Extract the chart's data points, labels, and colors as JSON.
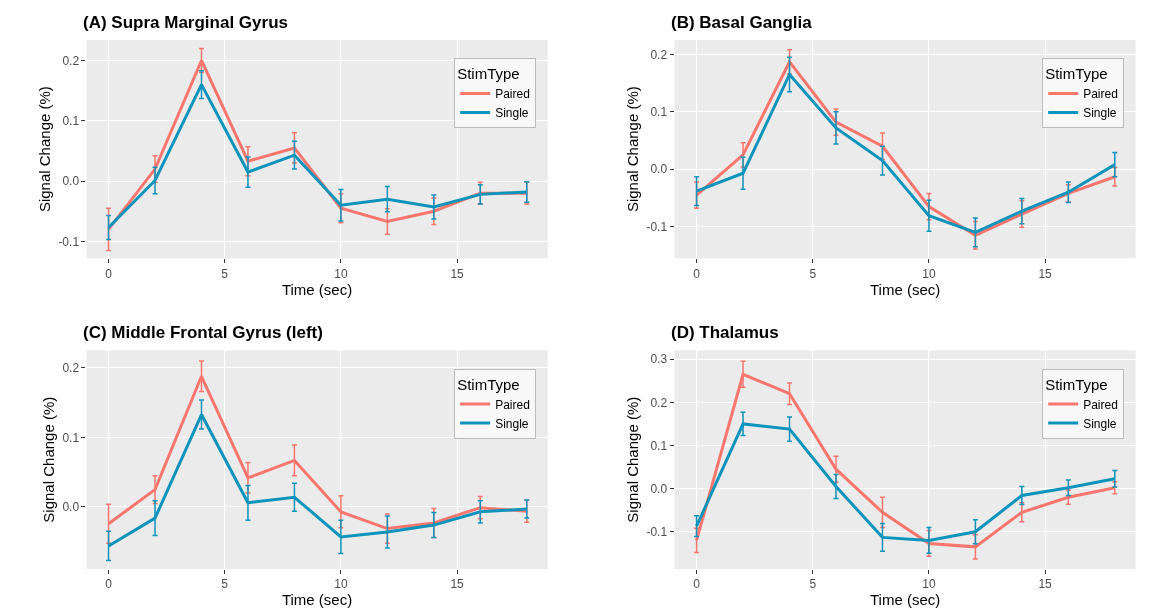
{
  "chart_data": [
    {
      "type": "line",
      "title": "(A) Supra Marginal Gyrus",
      "xlabel": "Time (sec)",
      "ylabel": "Signal Change (%)",
      "legend_title": "StimType",
      "legend": "top right",
      "grid": true,
      "marker": "none",
      "line_style": "solid",
      "x": [
        0,
        2,
        4,
        6,
        8,
        10,
        12,
        14,
        16,
        18
      ],
      "xlim": [
        -0.95,
        18.9
      ],
      "xticks": [
        0,
        5,
        10,
        15
      ],
      "ylim": [
        -0.128,
        0.234
      ],
      "yticks": [
        {
          "value": -0.1,
          "label": "-0.1"
        },
        {
          "value": 0,
          "label": "0.0"
        },
        {
          "value": 0.1,
          "label": "0.1"
        },
        {
          "value": 0.2,
          "label": "0.2"
        }
      ],
      "series": [
        {
          "name": "Paired",
          "color": "#f8766d",
          "values": [
            -0.08,
            0.02,
            0.2,
            0.033,
            0.055,
            -0.045,
            -0.067,
            -0.05,
            -0.02,
            -0.02
          ],
          "errors": [
            0.035,
            0.022,
            0.02,
            0.024,
            0.025,
            0.024,
            0.021,
            0.022,
            0.018,
            0.018
          ]
        },
        {
          "name": "Single",
          "color": "#0e93bb",
          "values": [
            -0.077,
            0.001,
            0.16,
            0.015,
            0.043,
            -0.04,
            -0.03,
            -0.043,
            -0.022,
            -0.018
          ],
          "errors": [
            0.02,
            0.022,
            0.023,
            0.025,
            0.023,
            0.026,
            0.021,
            0.02,
            0.016,
            0.017
          ]
        }
      ]
    },
    {
      "type": "line",
      "title": "(B) Basal Ganglia",
      "xlabel": "Time (sec)",
      "ylabel": "Signal Change (%)",
      "legend_title": "StimType",
      "legend": "top right",
      "grid": true,
      "marker": "none",
      "line_style": "solid",
      "x": [
        0,
        2,
        4,
        6,
        8,
        10,
        12,
        14,
        16,
        18
      ],
      "xlim": [
        -0.95,
        18.9
      ],
      "xticks": [
        0,
        5,
        10,
        15
      ],
      "ylim": [
        -0.155,
        0.225
      ],
      "yticks": [
        {
          "value": -0.1,
          "label": "-0.1"
        },
        {
          "value": 0,
          "label": "0.0"
        },
        {
          "value": 0.1,
          "label": "0.1"
        },
        {
          "value": 0.2,
          "label": "0.2"
        }
      ],
      "series": [
        {
          "name": "Paired",
          "color": "#f8766d",
          "values": [
            -0.045,
            0.025,
            0.187,
            0.082,
            0.04,
            -0.065,
            -0.115,
            -0.078,
            -0.042,
            -0.013
          ],
          "errors": [
            0.023,
            0.021,
            0.021,
            0.023,
            0.023,
            0.023,
            0.024,
            0.023,
            0.015,
            0.016
          ]
        },
        {
          "name": "Single",
          "color": "#0e93bb",
          "values": [
            -0.038,
            -0.007,
            0.165,
            0.072,
            0.015,
            -0.081,
            -0.11,
            -0.073,
            -0.04,
            0.008
          ],
          "errors": [
            0.025,
            0.028,
            0.03,
            0.028,
            0.025,
            0.027,
            0.025,
            0.022,
            0.018,
            0.021
          ]
        }
      ]
    },
    {
      "type": "line",
      "title": "(C) Middle Frontal Gyrus (left)",
      "xlabel": "Time (sec)",
      "ylabel": "Signal Change (%)",
      "legend_title": "StimType",
      "legend": "top right",
      "grid": true,
      "marker": "none",
      "line_style": "solid",
      "x": [
        0,
        2,
        4,
        6,
        8,
        10,
        12,
        14,
        16,
        18
      ],
      "xlim": [
        -0.95,
        18.9
      ],
      "xticks": [
        0,
        5,
        10,
        15
      ],
      "ylim": [
        -0.089,
        0.225
      ],
      "yticks": [
        {
          "value": 0,
          "label": "0.0"
        },
        {
          "value": 0.1,
          "label": "0.1"
        },
        {
          "value": 0.2,
          "label": "0.2"
        }
      ],
      "series": [
        {
          "name": "Paired",
          "color": "#f8766d",
          "values": [
            -0.024,
            0.025,
            0.188,
            0.042,
            0.067,
            -0.007,
            -0.031,
            -0.023,
            -0.001,
            -0.006
          ],
          "errors": [
            0.028,
            0.02,
            0.022,
            0.022,
            0.022,
            0.023,
            0.021,
            0.021,
            0.016,
            0.016
          ]
        },
        {
          "name": "Single",
          "color": "#0e93bb",
          "values": [
            -0.056,
            -0.016,
            0.133,
            0.006,
            0.014,
            -0.043,
            -0.036,
            -0.026,
            -0.007,
            -0.003
          ],
          "errors": [
            0.021,
            0.025,
            0.021,
            0.025,
            0.02,
            0.024,
            0.023,
            0.018,
            0.016,
            0.013
          ]
        }
      ]
    },
    {
      "type": "line",
      "title": "(D) Thalamus",
      "xlabel": "Time (sec)",
      "ylabel": "Signal Change (%)",
      "legend_title": "StimType",
      "legend": "top right",
      "grid": true,
      "marker": "none",
      "line_style": "solid",
      "x": [
        0,
        2,
        4,
        6,
        8,
        10,
        12,
        14,
        16,
        18
      ],
      "xlim": [
        -0.95,
        18.9
      ],
      "xticks": [
        0,
        5,
        10,
        15
      ],
      "ylim": [
        -0.186,
        0.32
      ],
      "yticks": [
        {
          "value": -0.1,
          "label": "-0.1"
        },
        {
          "value": 0,
          "label": "0.0"
        },
        {
          "value": 0.1,
          "label": "0.1"
        },
        {
          "value": 0.2,
          "label": "0.2"
        },
        {
          "value": 0.3,
          "label": "0.3"
        }
      ],
      "series": [
        {
          "name": "Paired",
          "color": "#f8766d",
          "values": [
            -0.12,
            0.265,
            0.22,
            0.045,
            -0.055,
            -0.127,
            -0.135,
            -0.055,
            -0.02,
            0.002
          ],
          "errors": [
            0.028,
            0.03,
            0.025,
            0.03,
            0.035,
            0.03,
            0.028,
            0.022,
            0.016,
            0.014
          ]
        },
        {
          "name": "Single",
          "color": "#0e93bb",
          "values": [
            -0.087,
            0.15,
            0.138,
            0.005,
            -0.113,
            -0.12,
            -0.1,
            -0.016,
            0.002,
            0.023
          ],
          "errors": [
            0.024,
            0.027,
            0.028,
            0.028,
            0.032,
            0.03,
            0.028,
            0.021,
            0.018,
            0.019
          ]
        }
      ]
    }
  ]
}
